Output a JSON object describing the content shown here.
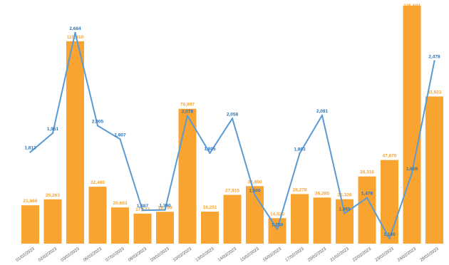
{
  "chart_data": {
    "type": "bar",
    "categories": [
      "01/02/2023",
      "02/02/2023",
      "03/02/2023",
      "06/02/2023",
      "07/02/2023",
      "08/02/2023",
      "09/02/2023",
      "10/02/2023",
      "13/02/2023",
      "14/02/2023",
      "15/02/2023",
      "16/02/2023",
      "17/02/2023",
      "20/02/2023",
      "21/02/2023",
      "22/02/2023",
      "23/02/2023",
      "24/02/2023",
      "28/02/2023"
    ],
    "series": [
      {
        "type": "bar",
        "color": "#F9A431",
        "values": [
          21866,
          25263,
          115410,
          32460,
          20653,
          17127,
          18159,
          76897,
          18251,
          27815,
          32800,
          14520,
          28278,
          26285,
          25326,
          38316,
          47670,
          135694,
          83923
        ],
        "labels": [
          "21,866",
          "25,263",
          "115,410",
          "32,460",
          "20,653",
          "17,127",
          "18,159",
          "76,897",
          "18,251",
          "27,815",
          "32,800",
          "14,520",
          "28,278",
          "26,285",
          "25,326",
          "38,316",
          "47,670",
          "135,694",
          "83,923"
        ]
      },
      {
        "type": "line",
        "color": "#5B9BD5",
        "values": [
          1812,
          1951,
          2684,
          2005,
          1907,
          1387,
          1390,
          2078,
          1805,
          2058,
          1500,
          1250,
          1803,
          2081,
          1365,
          1478,
          1180,
          1659,
          2478
        ],
        "labels": [
          "1,812",
          "1,951",
          "2,684",
          "2,005",
          "1,907",
          "1,387",
          "1,390",
          "2,078",
          "1,805",
          "2,058",
          "1,500",
          "1,250",
          "1,803",
          "2,081",
          "1,365",
          "1,478",
          "1,180",
          "1,659",
          "2,478"
        ]
      }
    ],
    "y_bar_range": [
      0,
      135694
    ],
    "y_line_range": [
      1180,
      2684
    ],
    "grid": false,
    "legend": "none"
  }
}
